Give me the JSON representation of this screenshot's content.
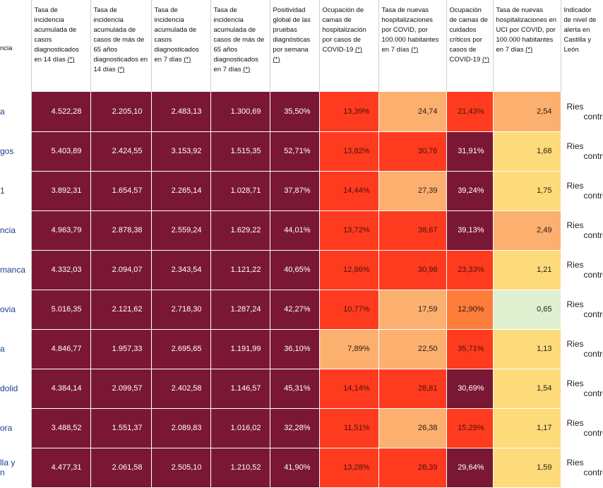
{
  "columns": [
    {
      "key": "prov",
      "label": "ncia"
    },
    {
      "key": "ia14",
      "label": "Tasa de incidencia acumulada de casos diagnosticados en 14 días",
      "ref": "(*)"
    },
    {
      "key": "ia14_65",
      "label": "Tasa de incidencia acumulada de casos de más de 65 años diagnosticados en 14 días",
      "ref": "(*)"
    },
    {
      "key": "ia7",
      "label": "Tasa de incidencia acumulada de casos diagnosticados en 7 días",
      "ref": "(*)"
    },
    {
      "key": "ia7_65",
      "label": "Tasa de incidencia acumulada de casos de más de 65 años diagnosticados en 7 días",
      "ref": "(*)"
    },
    {
      "key": "pos",
      "label": "Positividad global de las pruebas diagnósticas por semana",
      "ref": "(*)"
    },
    {
      "key": "hosp",
      "label": "Ocupación de camas de hospitalización por casos de COVID-19",
      "ref": "(*)"
    },
    {
      "key": "nhosp",
      "label": "Tasa de nuevas hospitalizaciones por COVID, por 100.000 habitantes en 7 días",
      "ref": "(*)"
    },
    {
      "key": "uci",
      "label": "Ocupación de camas de cuidados críticos por casos de COVID-19",
      "ref": "(*)"
    },
    {
      "key": "nuci",
      "label": "Tasa de nuevas hospitalizaciones en UCI por COVID, por 100.000 habitantes en 7 días",
      "ref": "(*)"
    },
    {
      "key": "ind",
      "label": "Indicador de nivel de alerta en Castilla y León",
      "ref": ""
    }
  ],
  "rows": [
    {
      "prov": "a",
      "v": [
        "4.522,28",
        "2.205,10",
        "2.483,13",
        "1.300,69",
        "35,50%",
        "13,39%",
        "24,74",
        "21,43%",
        "2,54"
      ],
      "risk": [
        "Ries",
        "controla"
      ]
    },
    {
      "prov": "gos",
      "v": [
        "5.403,89",
        "2.424,55",
        "3.153,92",
        "1.515,35",
        "52,71%",
        "13,82%",
        "30,76",
        "31,91%",
        "1,68"
      ],
      "risk": [
        "Ries",
        "controla"
      ]
    },
    {
      "prov": "1",
      "v": [
        "3.892,31",
        "1.654,57",
        "2.265,14",
        "1.028,71",
        "37,87%",
        "14,44%",
        "27,39",
        "39,24%",
        "1,75"
      ],
      "risk": [
        "Ries",
        "controla"
      ]
    },
    {
      "prov": "ncia",
      "v": [
        "4.963,79",
        "2.878,38",
        "2.559,24",
        "1.629,22",
        "44,01%",
        "13,72%",
        "38,67",
        "39,13%",
        "2,49"
      ],
      "risk": [
        "Ries",
        "controla"
      ]
    },
    {
      "prov": "manca",
      "v": [
        "4.332,03",
        "2.094,07",
        "2.343,54",
        "1.121,22",
        "40,65%",
        "12,86%",
        "30,98",
        "23,33%",
        "1,21"
      ],
      "risk": [
        "Ries",
        "controla"
      ]
    },
    {
      "prov": "ovia",
      "v": [
        "5.016,35",
        "2.121,62",
        "2.718,30",
        "1.287,24",
        "42,27%",
        "10,77%",
        "17,59",
        "12,90%",
        "0,65"
      ],
      "risk": [
        "Ries",
        "controla"
      ]
    },
    {
      "prov": "a",
      "v": [
        "4.846,77",
        "1.957,33",
        "2.695,65",
        "1.191,99",
        "36,10%",
        "7,89%",
        "22,50",
        "35,71%",
        "1,13"
      ],
      "risk": [
        "Ries",
        "controla"
      ]
    },
    {
      "prov": "dolid",
      "v": [
        "4.384,14",
        "2.099,57",
        "2.402,58",
        "1.146,57",
        "45,31%",
        "14,14%",
        "28,81",
        "30,69%",
        "1,54"
      ],
      "risk": [
        "Ries",
        "controla"
      ]
    },
    {
      "prov": "ora",
      "v": [
        "3.488,52",
        "1.551,37",
        "2.089,83",
        "1.016,02",
        "32,28%",
        "11,51%",
        "26,38",
        "15,29%",
        "1,17"
      ],
      "risk": [
        "Ries",
        "controla"
      ]
    },
    {
      "prov": "lla y\nn",
      "v": [
        "4.477,31",
        "2.061,58",
        "2.505,10",
        "1.210,52",
        "41,90%",
        "13,28%",
        "28,39",
        "29,64%",
        "1,59"
      ],
      "risk": [
        "Ries",
        "controla"
      ]
    }
  ],
  "cell_colors": {
    "maroon": "#7a1735",
    "red": "#ff3b1f",
    "orange": "#fd7d3a",
    "light_orange": "#fbb070",
    "yellow": "#fdda7a",
    "light_green": "#dff0d0"
  },
  "color_classes": [
    [
      "maroon",
      "maroon",
      "maroon",
      "maroon",
      "maroon",
      "red",
      "lorange",
      "red",
      "lorange"
    ],
    [
      "maroon",
      "maroon",
      "maroon",
      "maroon",
      "maroon",
      "red",
      "red",
      "maroon",
      "yellow"
    ],
    [
      "maroon",
      "maroon",
      "maroon",
      "maroon",
      "maroon",
      "red",
      "lorange",
      "maroon",
      "yellow"
    ],
    [
      "maroon",
      "maroon",
      "maroon",
      "maroon",
      "maroon",
      "red",
      "red",
      "maroon",
      "lorange"
    ],
    [
      "maroon",
      "maroon",
      "maroon",
      "maroon",
      "maroon",
      "red",
      "red",
      "red",
      "yellow"
    ],
    [
      "maroon",
      "maroon",
      "maroon",
      "maroon",
      "maroon",
      "red",
      "lorange",
      "orange",
      "lgreen"
    ],
    [
      "maroon",
      "maroon",
      "maroon",
      "maroon",
      "maroon",
      "lorange",
      "lorange",
      "red",
      "yellow"
    ],
    [
      "maroon",
      "maroon",
      "maroon",
      "maroon",
      "maroon",
      "red",
      "red",
      "maroon",
      "yellow"
    ],
    [
      "maroon",
      "maroon",
      "maroon",
      "maroon",
      "maroon",
      "red",
      "lorange",
      "red",
      "yellow"
    ],
    [
      "maroon",
      "maroon",
      "maroon",
      "maroon",
      "maroon",
      "red",
      "red",
      "maroon",
      "yellow"
    ]
  ]
}
